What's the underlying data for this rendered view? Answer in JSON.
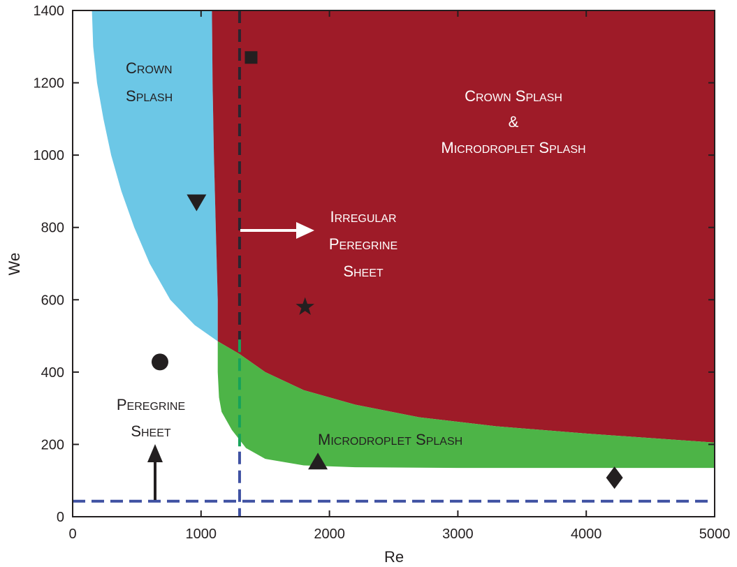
{
  "chart_data": {
    "type": "area",
    "title": "",
    "xlabel": "Re",
    "ylabel": "We",
    "xlim": [
      0,
      5000
    ],
    "ylim": [
      0,
      1400
    ],
    "x_ticks": [
      "0",
      "1000",
      "2000",
      "3000",
      "4000",
      "5000"
    ],
    "y_ticks": [
      "0",
      "200",
      "400",
      "600",
      "800",
      "1000",
      "1200",
      "1400"
    ],
    "colors": {
      "crown": "#6cc7e6",
      "both": "#9e1b28",
      "micro": "#4db447",
      "dashed": "#3f51a2",
      "ink": "#231f20"
    },
    "regions": [
      {
        "name": "crown-splash",
        "label_lines": [
          [
            "C",
            "ROWN"
          ],
          [
            "S",
            "PLASH"
          ]
        ],
        "label_color": "#231f20",
        "boundary": [
          [
            150,
            1400
          ],
          [
            160,
            1300
          ],
          [
            190,
            1200
          ],
          [
            240,
            1100
          ],
          [
            300,
            1000
          ],
          [
            380,
            900
          ],
          [
            480,
            800
          ],
          [
            600,
            700
          ],
          [
            760,
            600
          ],
          [
            950,
            530
          ],
          [
            1130,
            485
          ],
          [
            1130,
            600
          ],
          [
            1115,
            800
          ],
          [
            1100,
            1000
          ],
          [
            1090,
            1200
          ],
          [
            1085,
            1400
          ]
        ]
      },
      {
        "name": "crown-and-microdroplet-splash",
        "label_lines": [
          [
            "C",
            "ROWN",
            " S",
            "PLASH"
          ],
          [
            "&"
          ],
          [
            "M",
            "ICRODROPLET",
            " S",
            "PLASH"
          ]
        ],
        "label_color": "#ffffff",
        "boundary": [
          [
            1085,
            1400
          ],
          [
            1090,
            1200
          ],
          [
            1100,
            1000
          ],
          [
            1115,
            800
          ],
          [
            1130,
            600
          ],
          [
            1130,
            485
          ],
          [
            1300,
            450
          ],
          [
            1500,
            400
          ],
          [
            1800,
            350
          ],
          [
            2200,
            310
          ],
          [
            2700,
            275
          ],
          [
            3300,
            250
          ],
          [
            4000,
            230
          ],
          [
            5000,
            205
          ],
          [
            5000,
            1400
          ]
        ]
      },
      {
        "name": "microdroplet-splash",
        "label_lines": [
          [
            "M",
            "ICRODROPLET",
            " S",
            "PLASH"
          ]
        ],
        "label_color": "#231f20",
        "boundary": [
          [
            1130,
            485
          ],
          [
            1300,
            450
          ],
          [
            1500,
            400
          ],
          [
            1800,
            350
          ],
          [
            2200,
            310
          ],
          [
            2700,
            275
          ],
          [
            3300,
            250
          ],
          [
            4000,
            230
          ],
          [
            5000,
            205
          ],
          [
            5000,
            135
          ],
          [
            4000,
            135
          ],
          [
            3000,
            135
          ],
          [
            2200,
            137
          ],
          [
            1800,
            142
          ],
          [
            1500,
            160
          ],
          [
            1350,
            190
          ],
          [
            1240,
            240
          ],
          [
            1160,
            290
          ],
          [
            1140,
            330
          ],
          [
            1130,
            400
          ]
        ]
      }
    ],
    "annotations": [
      {
        "name": "irregular-peregrine-sheet",
        "lines": [
          [
            "I",
            "RREGULAR"
          ],
          [
            "P",
            "EREGRINE"
          ],
          [
            "S",
            "HEET"
          ]
        ],
        "color": "#ffffff"
      },
      {
        "name": "peregrine-sheet",
        "lines": [
          [
            "P",
            "EREGRINE"
          ],
          [
            "S",
            "HEET"
          ]
        ],
        "color": "#231f20"
      }
    ],
    "threshold_lines": [
      {
        "orientation": "vertical",
        "x": 1300
      },
      {
        "orientation": "horizontal",
        "y": 43
      }
    ],
    "markers": [
      {
        "shape": "square",
        "x": 1390,
        "y": 1270
      },
      {
        "shape": "triangle-down",
        "x": 965,
        "y": 870
      },
      {
        "shape": "star",
        "x": 1810,
        "y": 580
      },
      {
        "shape": "circle",
        "x": 680,
        "y": 428
      },
      {
        "shape": "triangle-up",
        "x": 1910,
        "y": 152
      },
      {
        "shape": "diamond",
        "x": 4220,
        "y": 108
      }
    ]
  }
}
